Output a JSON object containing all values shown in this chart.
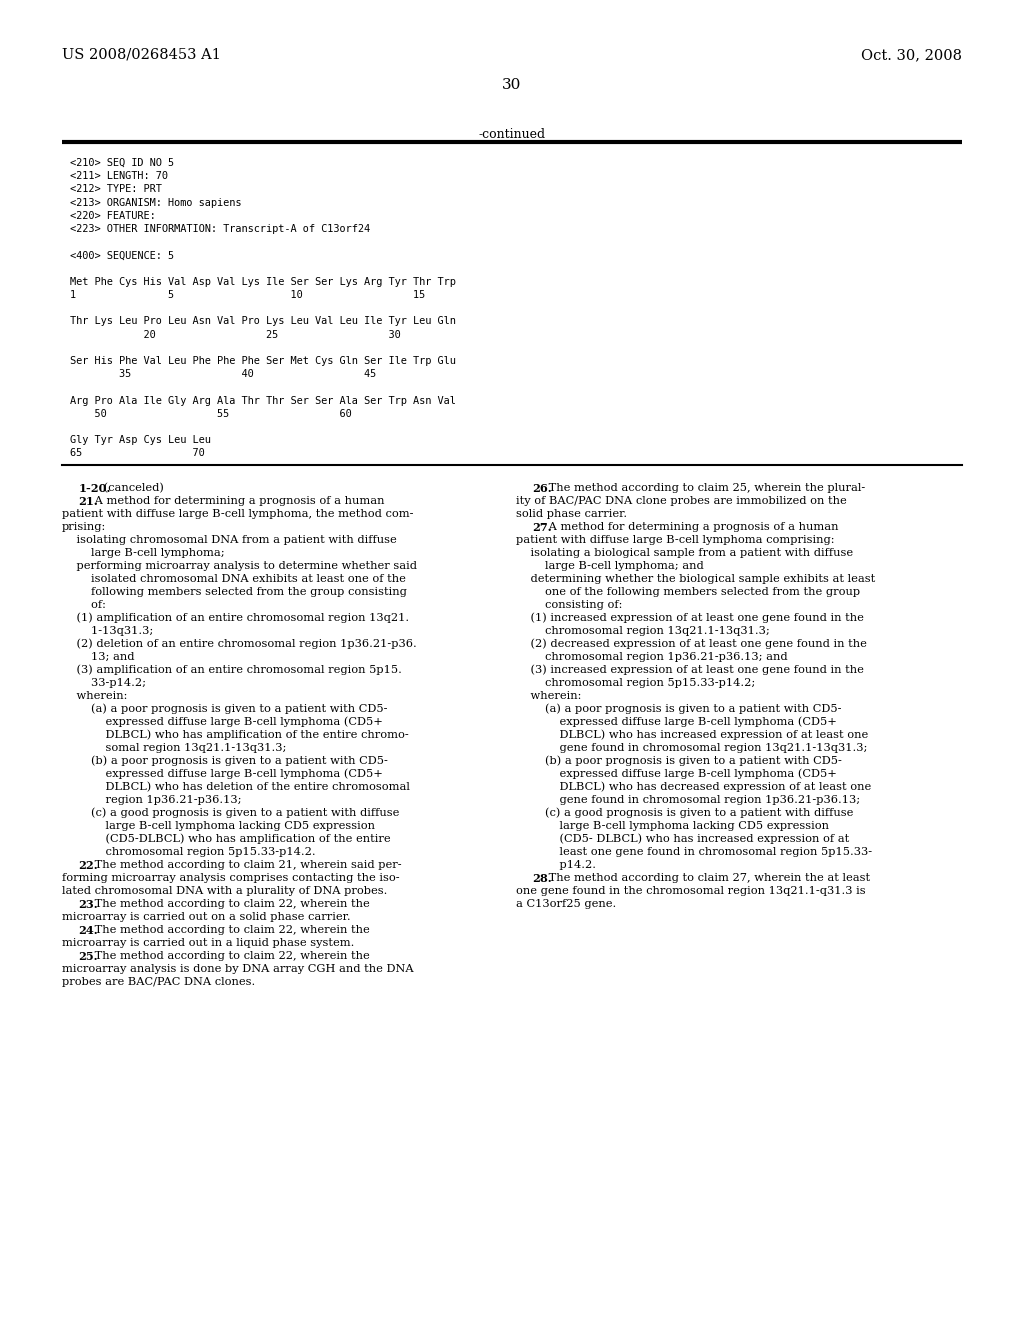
{
  "bg_color": "#ffffff",
  "header_left": "US 2008/0268453 A1",
  "header_right": "Oct. 30, 2008",
  "page_number": "30",
  "continued_label": "-continued",
  "seq_lines": [
    "<210> SEQ ID NO 5",
    "<211> LENGTH: 70",
    "<212> TYPE: PRT",
    "<213> ORGANISM: Homo sapiens",
    "<220> FEATURE:",
    "<223> OTHER INFORMATION: Transcript-A of C13orf24",
    "",
    "<400> SEQUENCE: 5",
    "",
    "Met Phe Cys His Val Asp Val Lys Ile Ser Ser Lys Arg Tyr Thr Trp",
    "1               5                   10                  15",
    "",
    "Thr Lys Leu Pro Leu Asn Val Pro Lys Leu Val Leu Ile Tyr Leu Gln",
    "            20                  25                  30",
    "",
    "Ser His Phe Val Leu Phe Phe Phe Ser Met Cys Gln Ser Ile Trp Glu",
    "        35                  40                  45",
    "",
    "Arg Pro Ala Ile Gly Arg Ala Thr Thr Ser Ser Ala Ser Trp Asn Val",
    "    50                  55                  60",
    "",
    "Gly Tyr Asp Cys Leu Leu",
    "65                  70"
  ],
  "left_col_lines": [
    {
      "t": "    1-20. (canceled)",
      "b": "1-20"
    },
    {
      "t": "    21. A method for determining a prognosis of a human",
      "b": "21"
    },
    {
      "t": "patient with diffuse large B-cell lymphoma, the method com-",
      "b": null
    },
    {
      "t": "prising:",
      "b": null
    },
    {
      "t": "    isolating chromosomal DNA from a patient with diffuse",
      "b": null
    },
    {
      "t": "        large B-cell lymphoma;",
      "b": null
    },
    {
      "t": "    performing microarray analysis to determine whether said",
      "b": null
    },
    {
      "t": "        isolated chromosomal DNA exhibits at least one of the",
      "b": null
    },
    {
      "t": "        following members selected from the group consisting",
      "b": null
    },
    {
      "t": "        of:",
      "b": null
    },
    {
      "t": "    (1) amplification of an entire chromosomal region 13q21.",
      "b": null
    },
    {
      "t": "        1-13q31.3;",
      "b": null
    },
    {
      "t": "    (2) deletion of an entire chromosomal region 1p36.21-p36.",
      "b": null
    },
    {
      "t": "        13; and",
      "b": null
    },
    {
      "t": "    (3) amplification of an entire chromosomal region 5p15.",
      "b": null
    },
    {
      "t": "        33-p14.2;",
      "b": null
    },
    {
      "t": "    wherein:",
      "b": null
    },
    {
      "t": "        (a) a poor prognosis is given to a patient with CD5-",
      "b": null
    },
    {
      "t": "            expressed diffuse large B-cell lymphoma (CD5+",
      "b": null
    },
    {
      "t": "            DLBCL) who has amplification of the entire chromo-",
      "b": null
    },
    {
      "t": "            somal region 13q21.1-13q31.3;",
      "b": null
    },
    {
      "t": "        (b) a poor prognosis is given to a patient with CD5-",
      "b": null
    },
    {
      "t": "            expressed diffuse large B-cell lymphoma (CD5+",
      "b": null
    },
    {
      "t": "            DLBCL) who has deletion of the entire chromosomal",
      "b": null
    },
    {
      "t": "            region 1p36.21-p36.13;",
      "b": null
    },
    {
      "t": "        (c) a good prognosis is given to a patient with diffuse",
      "b": null
    },
    {
      "t": "            large B-cell lymphoma lacking CD5 expression",
      "b": null
    },
    {
      "t": "            (CD5-DLBCL) who has amplification of the entire",
      "b": null
    },
    {
      "t": "            chromosomal region 5p15.33-p14.2.",
      "b": null
    },
    {
      "t": "    22. The method according to claim 21, wherein said per-",
      "b": "22"
    },
    {
      "t": "forming microarray analysis comprises contacting the iso-",
      "b": null
    },
    {
      "t": "lated chromosomal DNA with a plurality of DNA probes.",
      "b": null
    },
    {
      "t": "    23. The method according to claim 22, wherein the",
      "b": "23"
    },
    {
      "t": "microarray is carried out on a solid phase carrier.",
      "b": null
    },
    {
      "t": "    24. The method according to claim 22, wherein the",
      "b": "24"
    },
    {
      "t": "microarray is carried out in a liquid phase system.",
      "b": null
    },
    {
      "t": "    25. The method according to claim 22, wherein the",
      "b": "25"
    },
    {
      "t": "microarray analysis is done by DNA array CGH and the DNA",
      "b": null
    },
    {
      "t": "probes are BAC/PAC DNA clones.",
      "b": null
    }
  ],
  "right_col_lines": [
    {
      "t": "    26. The method according to claim 25, wherein the plural-",
      "b": "26"
    },
    {
      "t": "ity of BAC/PAC DNA clone probes are immobilized on the",
      "b": null
    },
    {
      "t": "solid phase carrier.",
      "b": null
    },
    {
      "t": "    27. A method for determining a prognosis of a human",
      "b": "27"
    },
    {
      "t": "patient with diffuse large B-cell lymphoma comprising:",
      "b": null
    },
    {
      "t": "    isolating a biological sample from a patient with diffuse",
      "b": null
    },
    {
      "t": "        large B-cell lymphoma; and",
      "b": null
    },
    {
      "t": "    determining whether the biological sample exhibits at least",
      "b": null
    },
    {
      "t": "        one of the following members selected from the group",
      "b": null
    },
    {
      "t": "        consisting of:",
      "b": null
    },
    {
      "t": "    (1) increased expression of at least one gene found in the",
      "b": null
    },
    {
      "t": "        chromosomal region 13q21.1-13q31.3;",
      "b": null
    },
    {
      "t": "    (2) decreased expression of at least one gene found in the",
      "b": null
    },
    {
      "t": "        chromosomal region 1p36.21-p36.13; and",
      "b": null
    },
    {
      "t": "    (3) increased expression of at least one gene found in the",
      "b": null
    },
    {
      "t": "        chromosomal region 5p15.33-p14.2;",
      "b": null
    },
    {
      "t": "    wherein:",
      "b": null
    },
    {
      "t": "        (a) a poor prognosis is given to a patient with CD5-",
      "b": null
    },
    {
      "t": "            expressed diffuse large B-cell lymphoma (CD5+",
      "b": null
    },
    {
      "t": "            DLBCL) who has increased expression of at least one",
      "b": null
    },
    {
      "t": "            gene found in chromosomal region 13q21.1-13q31.3;",
      "b": null
    },
    {
      "t": "        (b) a poor prognosis is given to a patient with CD5-",
      "b": null
    },
    {
      "t": "            expressed diffuse large B-cell lymphoma (CD5+",
      "b": null
    },
    {
      "t": "            DLBCL) who has decreased expression of at least one",
      "b": null
    },
    {
      "t": "            gene found in chromosomal region 1p36.21-p36.13;",
      "b": null
    },
    {
      "t": "        (c) a good prognosis is given to a patient with diffuse",
      "b": null
    },
    {
      "t": "            large B-cell lymphoma lacking CD5 expression",
      "b": null
    },
    {
      "t": "            (CD5- DLBCL) who has increased expression of at",
      "b": null
    },
    {
      "t": "            least one gene found in chromosomal region 5p15.33-",
      "b": null
    },
    {
      "t": "            p14.2.",
      "b": null
    },
    {
      "t": "    28. The method according to claim 27, wherein the at least",
      "b": "28"
    },
    {
      "t": "one gene found in the chromosomal region 13q21.1-q31.3 is",
      "b": null
    },
    {
      "t": "a C13orf25 gene.",
      "b": null
    }
  ]
}
